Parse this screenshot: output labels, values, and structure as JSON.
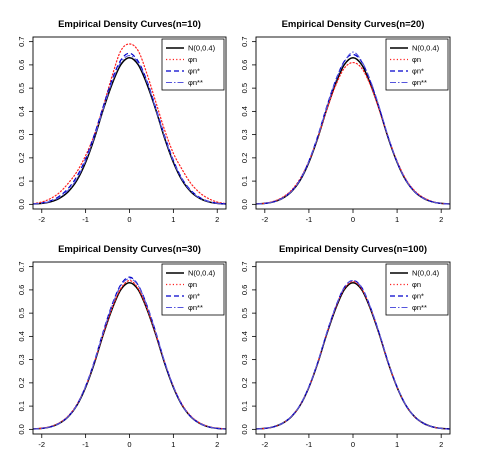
{
  "chart_data": [
    {
      "type": "line",
      "title": "Empirical Density Curves(n=10)",
      "xlim": [
        -2.2,
        2.2
      ],
      "ylim": [
        -0.02,
        0.72
      ],
      "xticks": [
        -2,
        -1,
        0,
        1,
        2
      ],
      "yticks": [
        0.0,
        0.1,
        0.2,
        0.3,
        0.4,
        0.5,
        0.6,
        0.7
      ],
      "xtick_labels": [
        "-2",
        "-1",
        "0",
        "1",
        "2"
      ],
      "ytick_labels": [
        "0.0",
        "0.1",
        "0.2",
        "0.3",
        "0.4",
        "0.5",
        "0.6",
        "0.7"
      ],
      "legend_position": "top-right",
      "legend": [
        "N(0,0.4)",
        "φn",
        "φn*",
        "φn**"
      ],
      "series": [
        {
          "name": "N(0,0.4)",
          "color": "#000000",
          "style": "solid",
          "x": [
            -2.2,
            -2.0,
            -1.8,
            -1.6,
            -1.4,
            -1.2,
            -1.0,
            -0.8,
            -0.6,
            -0.4,
            -0.2,
            0.0,
            0.2,
            0.4,
            0.6,
            0.8,
            1.0,
            1.2,
            1.4,
            1.6,
            1.8,
            2.0,
            2.2
          ],
          "y": [
            0.0015,
            0.004,
            0.011,
            0.026,
            0.054,
            0.103,
            0.181,
            0.285,
            0.407,
            0.516,
            0.6,
            0.631,
            0.6,
            0.516,
            0.407,
            0.285,
            0.181,
            0.103,
            0.054,
            0.026,
            0.011,
            0.004,
            0.0015
          ]
        },
        {
          "name": "φn",
          "color": "#ff2020",
          "style": "dotted",
          "x": [
            -2.2,
            -2.0,
            -1.8,
            -1.6,
            -1.4,
            -1.2,
            -1.0,
            -0.8,
            -0.6,
            -0.4,
            -0.2,
            0.0,
            0.2,
            0.4,
            0.6,
            0.8,
            1.0,
            1.2,
            1.4,
            1.6,
            1.8,
            2.0,
            2.2
          ],
          "y": [
            0.003,
            0.01,
            0.025,
            0.05,
            0.09,
            0.14,
            0.21,
            0.3,
            0.42,
            0.55,
            0.66,
            0.69,
            0.66,
            0.56,
            0.44,
            0.32,
            0.22,
            0.15,
            0.09,
            0.05,
            0.025,
            0.01,
            0.003
          ]
        },
        {
          "name": "φn*",
          "color": "#0000cc",
          "style": "dashed",
          "x": [
            -2.2,
            -2.0,
            -1.8,
            -1.6,
            -1.4,
            -1.2,
            -1.0,
            -0.8,
            -0.6,
            -0.4,
            -0.2,
            0.0,
            0.2,
            0.4,
            0.6,
            0.8,
            1.0,
            1.2,
            1.4,
            1.6,
            1.8,
            2.0,
            2.2
          ],
          "y": [
            0.002,
            0.006,
            0.015,
            0.035,
            0.068,
            0.12,
            0.196,
            0.3,
            0.42,
            0.535,
            0.62,
            0.65,
            0.615,
            0.53,
            0.415,
            0.295,
            0.19,
            0.11,
            0.06,
            0.03,
            0.013,
            0.005,
            0.002
          ]
        },
        {
          "name": "φn**",
          "color": "#5555dd",
          "style": "dashdot",
          "x": [
            -2.2,
            -2.0,
            -1.8,
            -1.6,
            -1.4,
            -1.2,
            -1.0,
            -0.8,
            -0.6,
            -0.4,
            -0.2,
            0.0,
            0.2,
            0.4,
            0.6,
            0.8,
            1.0,
            1.2,
            1.4,
            1.6,
            1.8,
            2.0,
            2.2
          ],
          "y": [
            0.002,
            0.005,
            0.013,
            0.03,
            0.06,
            0.11,
            0.188,
            0.29,
            0.41,
            0.525,
            0.61,
            0.64,
            0.608,
            0.525,
            0.41,
            0.29,
            0.186,
            0.107,
            0.057,
            0.027,
            0.012,
            0.004,
            0.0015
          ]
        }
      ]
    },
    {
      "type": "line",
      "title": "Empirical Density Curves(n=20)",
      "xlim": [
        -2.2,
        2.2
      ],
      "ylim": [
        -0.02,
        0.72
      ],
      "xticks": [
        -2,
        -1,
        0,
        1,
        2
      ],
      "yticks": [
        0.0,
        0.1,
        0.2,
        0.3,
        0.4,
        0.5,
        0.6,
        0.7
      ],
      "xtick_labels": [
        "-2",
        "-1",
        "0",
        "1",
        "2"
      ],
      "ytick_labels": [
        "0.0",
        "0.1",
        "0.2",
        "0.3",
        "0.4",
        "0.5",
        "0.6",
        "0.7"
      ],
      "legend_position": "top-right",
      "legend": [
        "N(0,0.4)",
        "φn",
        "φn*",
        "φn**"
      ],
      "series": [
        {
          "name": "N(0,0.4)",
          "color": "#000000",
          "style": "solid",
          "x": [
            -2.2,
            -2.0,
            -1.8,
            -1.6,
            -1.4,
            -1.2,
            -1.0,
            -0.8,
            -0.6,
            -0.4,
            -0.2,
            0.0,
            0.2,
            0.4,
            0.6,
            0.8,
            1.0,
            1.2,
            1.4,
            1.6,
            1.8,
            2.0,
            2.2
          ],
          "y": [
            0.0015,
            0.004,
            0.011,
            0.026,
            0.054,
            0.103,
            0.181,
            0.285,
            0.407,
            0.516,
            0.6,
            0.631,
            0.6,
            0.516,
            0.407,
            0.285,
            0.181,
            0.103,
            0.054,
            0.026,
            0.011,
            0.004,
            0.0015
          ]
        },
        {
          "name": "φn",
          "color": "#ff2020",
          "style": "dotted",
          "x": [
            -2.2,
            -2.0,
            -1.8,
            -1.6,
            -1.4,
            -1.2,
            -1.0,
            -0.8,
            -0.6,
            -0.4,
            -0.2,
            0.0,
            0.2,
            0.4,
            0.6,
            0.8,
            1.0,
            1.2,
            1.4,
            1.6,
            1.8,
            2.0,
            2.2
          ],
          "y": [
            0.002,
            0.005,
            0.013,
            0.03,
            0.06,
            0.11,
            0.186,
            0.287,
            0.405,
            0.508,
            0.585,
            0.61,
            0.585,
            0.51,
            0.405,
            0.288,
            0.186,
            0.108,
            0.058,
            0.029,
            0.012,
            0.004,
            0.0015
          ]
        },
        {
          "name": "φn*",
          "color": "#0000cc",
          "style": "dashed",
          "x": [
            -2.2,
            -2.0,
            -1.8,
            -1.6,
            -1.4,
            -1.2,
            -1.0,
            -0.8,
            -0.6,
            -0.4,
            -0.2,
            0.0,
            0.2,
            0.4,
            0.6,
            0.8,
            1.0,
            1.2,
            1.4,
            1.6,
            1.8,
            2.0,
            2.2
          ],
          "y": [
            0.0015,
            0.004,
            0.011,
            0.027,
            0.056,
            0.106,
            0.186,
            0.293,
            0.418,
            0.53,
            0.615,
            0.645,
            0.612,
            0.526,
            0.413,
            0.288,
            0.182,
            0.104,
            0.054,
            0.026,
            0.011,
            0.004,
            0.0015
          ]
        },
        {
          "name": "φn**",
          "color": "#5555dd",
          "style": "dashdot",
          "x": [
            -2.2,
            -2.0,
            -1.8,
            -1.6,
            -1.4,
            -1.2,
            -1.0,
            -0.8,
            -0.6,
            -0.4,
            -0.2,
            0.0,
            0.2,
            0.4,
            0.6,
            0.8,
            1.0,
            1.2,
            1.4,
            1.6,
            1.8,
            2.0,
            2.2
          ],
          "y": [
            0.0015,
            0.004,
            0.011,
            0.026,
            0.055,
            0.105,
            0.184,
            0.29,
            0.415,
            0.527,
            0.612,
            0.655,
            0.615,
            0.53,
            0.416,
            0.29,
            0.183,
            0.104,
            0.054,
            0.026,
            0.011,
            0.004,
            0.0015
          ]
        }
      ]
    },
    {
      "type": "line",
      "title": "Empirical Density Curves(n=30)",
      "xlim": [
        -2.2,
        2.2
      ],
      "ylim": [
        -0.02,
        0.72
      ],
      "xticks": [
        -2,
        -1,
        0,
        1,
        2
      ],
      "yticks": [
        0.0,
        0.1,
        0.2,
        0.3,
        0.4,
        0.5,
        0.6,
        0.7
      ],
      "xtick_labels": [
        "-2",
        "-1",
        "0",
        "1",
        "2"
      ],
      "ytick_labels": [
        "0.0",
        "0.1",
        "0.2",
        "0.3",
        "0.4",
        "0.5",
        "0.6",
        "0.7"
      ],
      "legend_position": "top-right",
      "legend": [
        "N(0,0.4)",
        "φn",
        "φn*",
        "φn**"
      ],
      "series": [
        {
          "name": "N(0,0.4)",
          "color": "#000000",
          "style": "solid",
          "x": [
            -2.2,
            -2.0,
            -1.8,
            -1.6,
            -1.4,
            -1.2,
            -1.0,
            -0.8,
            -0.6,
            -0.4,
            -0.2,
            0.0,
            0.2,
            0.4,
            0.6,
            0.8,
            1.0,
            1.2,
            1.4,
            1.6,
            1.8,
            2.0,
            2.2
          ],
          "y": [
            0.0015,
            0.004,
            0.011,
            0.026,
            0.054,
            0.103,
            0.181,
            0.285,
            0.407,
            0.516,
            0.6,
            0.631,
            0.6,
            0.516,
            0.407,
            0.285,
            0.181,
            0.103,
            0.054,
            0.026,
            0.011,
            0.004,
            0.0015
          ]
        },
        {
          "name": "φn",
          "color": "#ff2020",
          "style": "dotted",
          "x": [
            -2.2,
            -2.0,
            -1.8,
            -1.6,
            -1.4,
            -1.2,
            -1.0,
            -0.8,
            -0.6,
            -0.4,
            -0.2,
            0.0,
            0.2,
            0.4,
            0.6,
            0.8,
            1.0,
            1.2,
            1.4,
            1.6,
            1.8,
            2.0,
            2.2
          ],
          "y": [
            0.0018,
            0.005,
            0.012,
            0.028,
            0.057,
            0.107,
            0.185,
            0.29,
            0.41,
            0.52,
            0.605,
            0.64,
            0.605,
            0.52,
            0.41,
            0.29,
            0.185,
            0.107,
            0.057,
            0.028,
            0.012,
            0.005,
            0.0018
          ]
        },
        {
          "name": "φn*",
          "color": "#0000cc",
          "style": "dashed",
          "x": [
            -2.2,
            -2.0,
            -1.8,
            -1.6,
            -1.4,
            -1.2,
            -1.0,
            -0.8,
            -0.6,
            -0.4,
            -0.2,
            0.0,
            0.2,
            0.4,
            0.6,
            0.8,
            1.0,
            1.2,
            1.4,
            1.6,
            1.8,
            2.0,
            2.2
          ],
          "y": [
            0.0015,
            0.004,
            0.011,
            0.026,
            0.055,
            0.105,
            0.186,
            0.293,
            0.42,
            0.535,
            0.622,
            0.655,
            0.62,
            0.532,
            0.418,
            0.29,
            0.184,
            0.104,
            0.054,
            0.026,
            0.011,
            0.004,
            0.0015
          ]
        },
        {
          "name": "φn**",
          "color": "#5555dd",
          "style": "dashdot",
          "x": [
            -2.2,
            -2.0,
            -1.8,
            -1.6,
            -1.4,
            -1.2,
            -1.0,
            -0.8,
            -0.6,
            -0.4,
            -0.2,
            0.0,
            0.2,
            0.4,
            0.6,
            0.8,
            1.0,
            1.2,
            1.4,
            1.6,
            1.8,
            2.0,
            2.2
          ],
          "y": [
            0.0015,
            0.004,
            0.011,
            0.026,
            0.055,
            0.104,
            0.184,
            0.29,
            0.416,
            0.53,
            0.618,
            0.648,
            0.618,
            0.53,
            0.416,
            0.29,
            0.184,
            0.104,
            0.055,
            0.026,
            0.011,
            0.004,
            0.0015
          ]
        }
      ]
    },
    {
      "type": "line",
      "title": "Empirical Density Curves(n=100)",
      "xlim": [
        -2.2,
        2.2
      ],
      "ylim": [
        -0.02,
        0.72
      ],
      "xticks": [
        -2,
        -1,
        0,
        1,
        2
      ],
      "yticks": [
        0.0,
        0.1,
        0.2,
        0.3,
        0.4,
        0.5,
        0.6,
        0.7
      ],
      "xtick_labels": [
        "-2",
        "-1",
        "0",
        "1",
        "2"
      ],
      "ytick_labels": [
        "0.0",
        "0.1",
        "0.2",
        "0.3",
        "0.4",
        "0.5",
        "0.6",
        "0.7"
      ],
      "legend_position": "top-right",
      "legend": [
        "N(0,0.4)",
        "φn",
        "φn*",
        "φn**"
      ],
      "series": [
        {
          "name": "N(0,0.4)",
          "color": "#000000",
          "style": "solid",
          "x": [
            -2.2,
            -2.0,
            -1.8,
            -1.6,
            -1.4,
            -1.2,
            -1.0,
            -0.8,
            -0.6,
            -0.4,
            -0.2,
            0.0,
            0.2,
            0.4,
            0.6,
            0.8,
            1.0,
            1.2,
            1.4,
            1.6,
            1.8,
            2.0,
            2.2
          ],
          "y": [
            0.0015,
            0.004,
            0.011,
            0.026,
            0.054,
            0.103,
            0.181,
            0.285,
            0.407,
            0.516,
            0.6,
            0.631,
            0.6,
            0.516,
            0.407,
            0.285,
            0.181,
            0.103,
            0.054,
            0.026,
            0.011,
            0.004,
            0.0015
          ]
        },
        {
          "name": "φn",
          "color": "#ff2020",
          "style": "dotted",
          "x": [
            -2.2,
            -2.0,
            -1.8,
            -1.6,
            -1.4,
            -1.2,
            -1.0,
            -0.8,
            -0.6,
            -0.4,
            -0.2,
            0.0,
            0.2,
            0.4,
            0.6,
            0.8,
            1.0,
            1.2,
            1.4,
            1.6,
            1.8,
            2.0,
            2.2
          ],
          "y": [
            0.0015,
            0.004,
            0.011,
            0.026,
            0.055,
            0.104,
            0.182,
            0.287,
            0.41,
            0.52,
            0.605,
            0.636,
            0.604,
            0.519,
            0.409,
            0.286,
            0.182,
            0.104,
            0.054,
            0.026,
            0.011,
            0.004,
            0.0015
          ]
        },
        {
          "name": "φn*",
          "color": "#0000cc",
          "style": "dashed",
          "x": [
            -2.2,
            -2.0,
            -1.8,
            -1.6,
            -1.4,
            -1.2,
            -1.0,
            -0.8,
            -0.6,
            -0.4,
            -0.2,
            0.0,
            0.2,
            0.4,
            0.6,
            0.8,
            1.0,
            1.2,
            1.4,
            1.6,
            1.8,
            2.0,
            2.2
          ],
          "y": [
            0.0015,
            0.004,
            0.011,
            0.026,
            0.055,
            0.104,
            0.183,
            0.288,
            0.412,
            0.524,
            0.61,
            0.641,
            0.61,
            0.523,
            0.411,
            0.288,
            0.183,
            0.104,
            0.054,
            0.026,
            0.011,
            0.004,
            0.0015
          ]
        },
        {
          "name": "φn**",
          "color": "#5555dd",
          "style": "dashdot",
          "x": [
            -2.2,
            -2.0,
            -1.8,
            -1.6,
            -1.4,
            -1.2,
            -1.0,
            -0.8,
            -0.6,
            -0.4,
            -0.2,
            0.0,
            0.2,
            0.4,
            0.6,
            0.8,
            1.0,
            1.2,
            1.4,
            1.6,
            1.8,
            2.0,
            2.2
          ],
          "y": [
            0.0015,
            0.004,
            0.011,
            0.026,
            0.055,
            0.104,
            0.183,
            0.288,
            0.411,
            0.523,
            0.609,
            0.64,
            0.609,
            0.523,
            0.411,
            0.288,
            0.183,
            0.104,
            0.055,
            0.026,
            0.011,
            0.004,
            0.0015
          ]
        }
      ]
    }
  ]
}
